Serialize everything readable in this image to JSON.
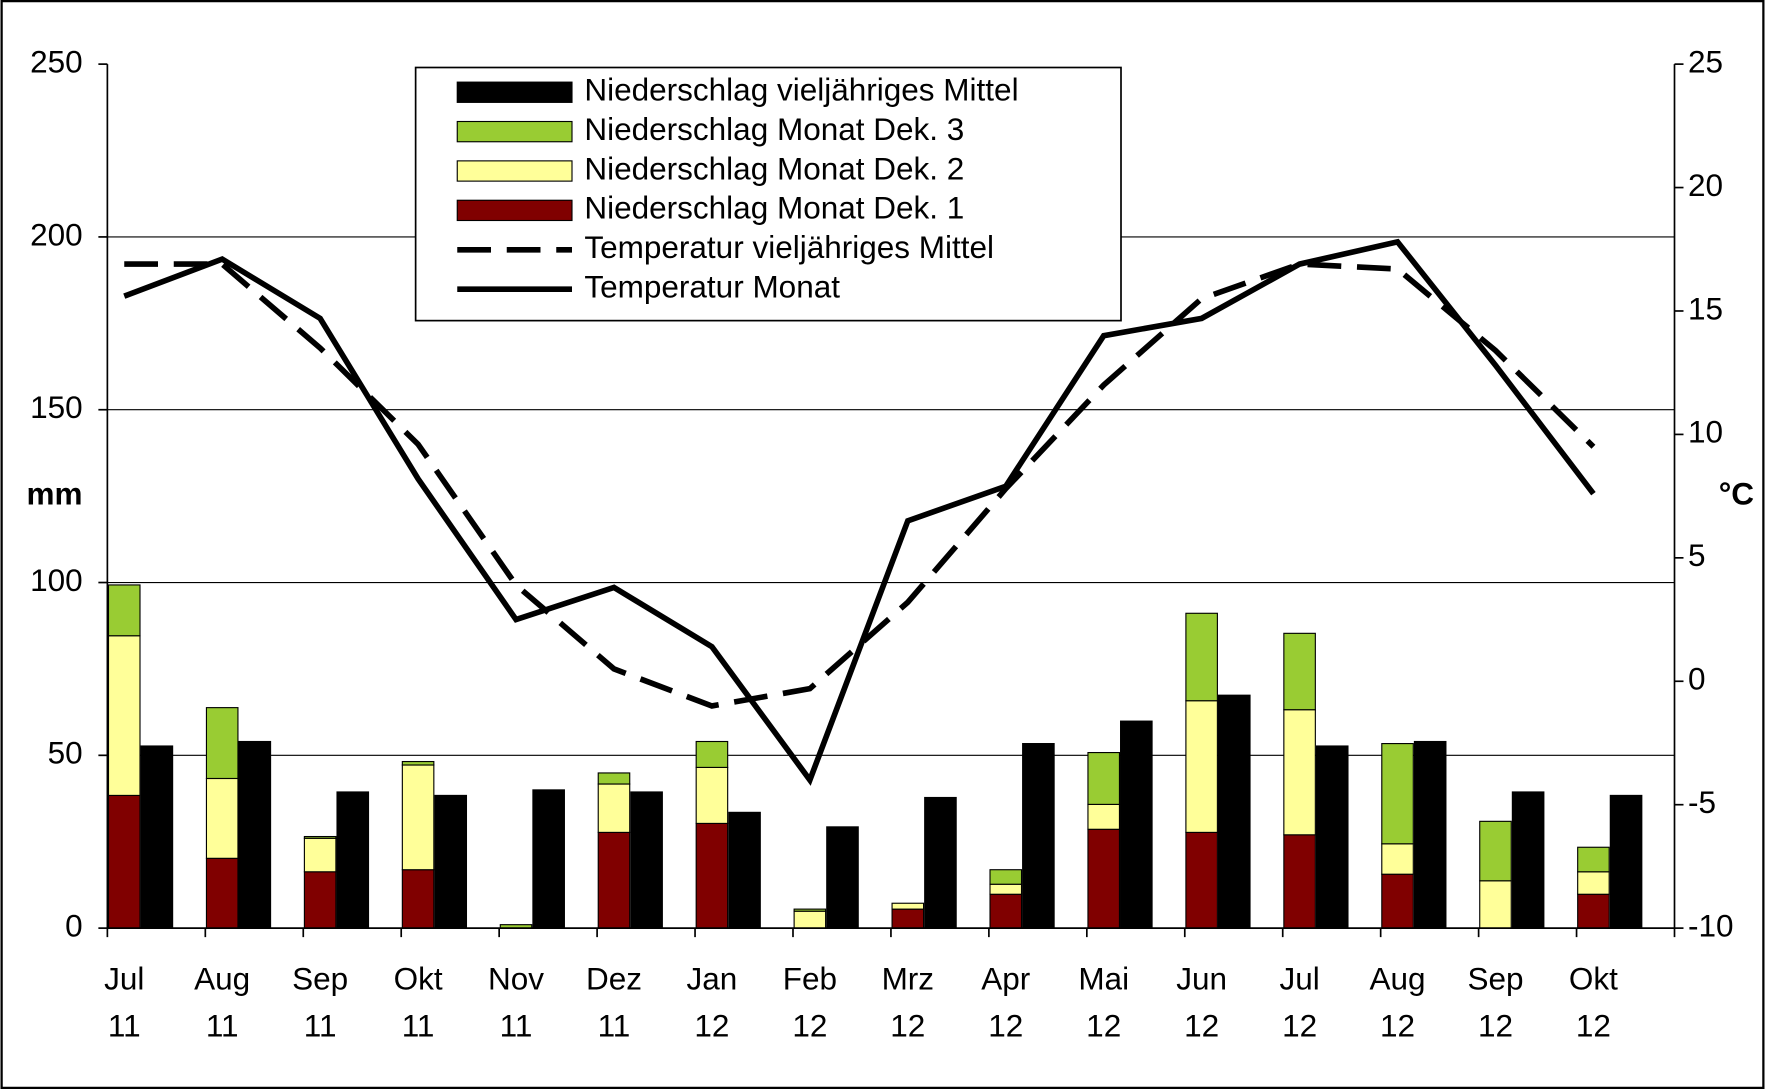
{
  "chart_data": {
    "type": "bar-line",
    "categories": [
      [
        "Jul",
        "11"
      ],
      [
        "Aug",
        "11"
      ],
      [
        "Sep",
        "11"
      ],
      [
        "Okt",
        "11"
      ],
      [
        "Nov",
        "11"
      ],
      [
        "Dez",
        "11"
      ],
      [
        "Jan",
        "12"
      ],
      [
        "Feb",
        "12"
      ],
      [
        "Mrz",
        "12"
      ],
      [
        "Apr",
        "12"
      ],
      [
        "Mai",
        "12"
      ],
      [
        "Jun",
        "12"
      ],
      [
        "Jul",
        "12"
      ],
      [
        "Aug",
        "12"
      ],
      [
        "Sep",
        "12"
      ],
      [
        "Okt",
        "12"
      ]
    ],
    "y_label": "mm",
    "y2_label": "°C",
    "ylim": [
      0,
      250
    ],
    "yticks": [
      0,
      50,
      100,
      150,
      200,
      250
    ],
    "y2lim": [
      -10,
      25
    ],
    "y2ticks": [
      -10,
      -5,
      0,
      5,
      10,
      15,
      20,
      25
    ],
    "grid": true,
    "legend": "top",
    "series": [
      {
        "name": "Niederschlag vieljähriges Mittel",
        "type": "bar",
        "color": "#000000",
        "values": [
          52.7,
          54.0,
          39.4,
          38.4,
          40.0,
          39.4,
          33.5,
          29.3,
          37.8,
          53.4,
          59.9,
          67.4,
          52.7,
          54.0,
          39.4,
          38.4
        ]
      },
      {
        "name": "Niederschlag Monat Dek. 3",
        "type": "bar",
        "stack": "monat",
        "color": "#99cc33",
        "values": [
          14.7,
          20.5,
          0.5,
          1.0,
          1.0,
          3.2,
          7.5,
          0.6,
          0,
          4.2,
          15.0,
          25.3,
          22.1,
          29.0,
          17.2,
          7.1
        ]
      },
      {
        "name": "Niederschlag Monat Dek. 2",
        "type": "bar",
        "stack": "monat",
        "color": "#ffff99",
        "values": [
          46.2,
          23.1,
          9.7,
          30.3,
          0,
          14.0,
          16.2,
          4.9,
          1.7,
          2.9,
          7.2,
          38.1,
          36.2,
          8.8,
          13.7,
          6.5
        ]
      },
      {
        "name": "Niederschlag Monat Dek. 1",
        "type": "bar",
        "stack": "monat",
        "color": "#800000",
        "values": [
          38.4,
          20.2,
          16.3,
          16.9,
          0,
          27.7,
          30.3,
          0,
          5.5,
          9.8,
          28.6,
          27.7,
          27.0,
          15.6,
          0,
          9.8
        ]
      },
      {
        "name": "Temperatur vieljähriges Mittel",
        "type": "line",
        "axis": "y2",
        "style": "dashed",
        "color": "#000000",
        "values": [
          16.9,
          16.9,
          13.5,
          9.6,
          3.9,
          0.5,
          -1.0,
          -0.3,
          3.2,
          7.8,
          12.0,
          15.5,
          16.9,
          16.7,
          13.4,
          9.5
        ]
      },
      {
        "name": "Temperatur Monat",
        "type": "line",
        "axis": "y2",
        "style": "solid",
        "color": "#000000",
        "values": [
          15.6,
          17.1,
          14.7,
          8.2,
          2.5,
          3.8,
          1.4,
          -4.0,
          6.5,
          7.9,
          14.0,
          14.7,
          16.9,
          17.8,
          12.8,
          7.6
        ]
      }
    ]
  }
}
